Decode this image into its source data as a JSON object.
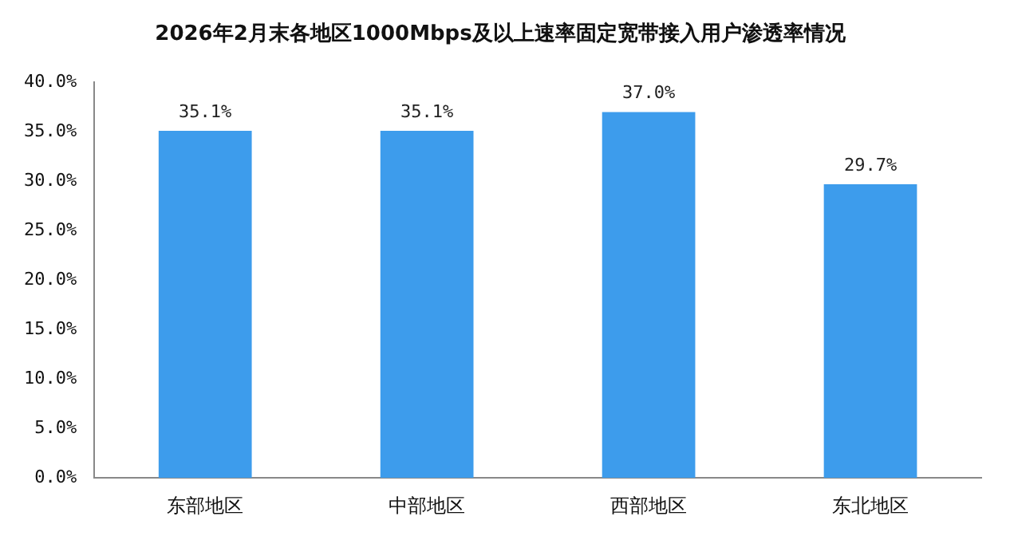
{
  "chart_data": {
    "type": "bar",
    "title": "2026年2月末各地区1000Mbps及以上速率固定宽带接入用户渗透率情况",
    "categories": [
      "东部地区",
      "中部地区",
      "西部地区",
      "东北地区"
    ],
    "values": [
      35.1,
      35.1,
      37.0,
      29.7
    ],
    "value_labels": [
      "35.1%",
      "35.1%",
      "37.0%",
      "29.7%"
    ],
    "color": "#3d9cec",
    "ylim": [
      0,
      40
    ],
    "yticks": [
      {
        "value": 0,
        "label": "0.0%"
      },
      {
        "value": 5,
        "label": "5.0%"
      },
      {
        "value": 10,
        "label": "10.0%"
      },
      {
        "value": 15,
        "label": "15.0%"
      },
      {
        "value": 20,
        "label": "20.0%"
      },
      {
        "value": 25,
        "label": "25.0%"
      },
      {
        "value": 30,
        "label": "30.0%"
      },
      {
        "value": 35,
        "label": "35.0%"
      },
      {
        "value": 40,
        "label": "40.0%"
      }
    ],
    "grid": false,
    "legend": false
  }
}
